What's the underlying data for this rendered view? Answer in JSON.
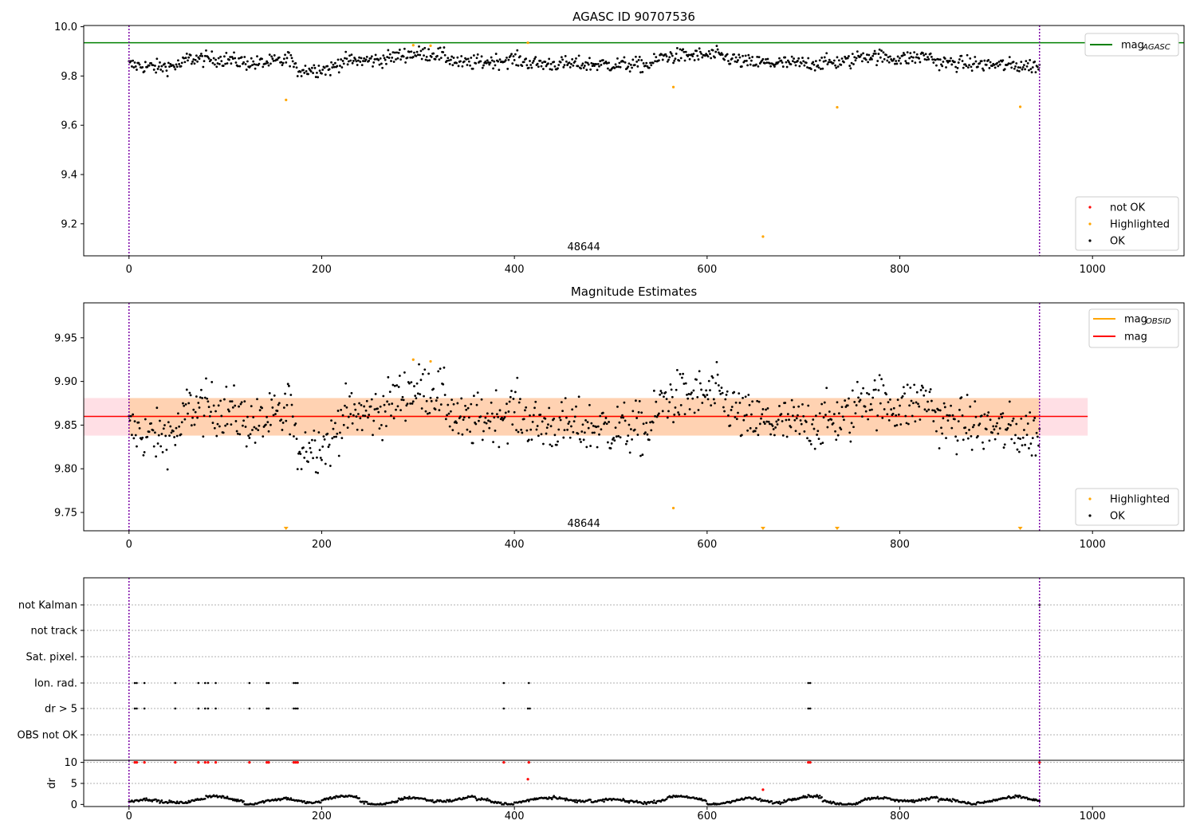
{
  "chart_data": [
    {
      "id": "top",
      "type": "scatter",
      "title": "AGASC ID 90707536",
      "xlim": [
        -47,
        1095
      ],
      "ylim": [
        9.07,
        10.005
      ],
      "xticks": [
        0,
        200,
        400,
        600,
        800,
        1000
      ],
      "yticks": [
        9.2,
        9.4,
        9.6,
        9.8,
        10.0
      ],
      "ytick_labels": [
        "9.2",
        "9.4",
        "9.6",
        "9.8",
        "10.0"
      ],
      "vlines": [
        0,
        945
      ],
      "hline": {
        "y": 9.935,
        "color": "#008000"
      },
      "obsid_label": {
        "text": "48644",
        "x": 472,
        "y": 9.105
      },
      "ok_series": {
        "x_start": 0,
        "x_end": 945,
        "y_mean": 9.86
      },
      "highlighted": [
        {
          "x": 163,
          "y": 9.703
        },
        {
          "x": 295,
          "y": 9.925
        },
        {
          "x": 313,
          "y": 9.923
        },
        {
          "x": 414,
          "y": 9.935
        },
        {
          "x": 565,
          "y": 9.755
        },
        {
          "x": 658,
          "y": 9.148
        },
        {
          "x": 735,
          "y": 9.673
        },
        {
          "x": 925,
          "y": 9.675
        }
      ],
      "legend_upper": [
        {
          "label": "mag",
          "sub": "AGASC",
          "color": "#008000"
        }
      ],
      "legend_lower": [
        {
          "label": "not OK",
          "color": "#ff0000"
        },
        {
          "label": "Highlighted",
          "color": "#ffa500"
        },
        {
          "label": "OK",
          "color": "#000000"
        }
      ]
    },
    {
      "id": "mid",
      "type": "scatter",
      "title": "Magnitude Estimates",
      "xlim": [
        -47,
        1095
      ],
      "ylim": [
        9.729,
        9.99
      ],
      "xticks": [
        0,
        200,
        400,
        600,
        800,
        1000
      ],
      "yticks": [
        9.75,
        9.8,
        9.85,
        9.9,
        9.95
      ],
      "ytick_labels": [
        "9.75",
        "9.80",
        "9.85",
        "9.90",
        "9.95"
      ],
      "vlines": [
        0,
        945
      ],
      "mag_line": {
        "y": 9.86,
        "color": "#ff0000"
      },
      "mag_band": {
        "y0": 9.838,
        "y1": 9.881,
        "x0": -47,
        "x1": 995
      },
      "obsid_band": {
        "y0": 9.838,
        "y1": 9.881,
        "x0": 0,
        "x1": 945
      },
      "obsid_label": {
        "text": "48644",
        "x": 472,
        "y": 9.737
      },
      "highlighted": [
        {
          "x": 295,
          "y": 9.925
        },
        {
          "x": 313,
          "y": 9.923
        },
        {
          "x": 565,
          "y": 9.755
        }
      ],
      "highlighted_below": [
        163,
        658,
        735,
        925
      ],
      "legend_upper": [
        {
          "label": "mag",
          "sub": "OBSID",
          "color": "#ffa500"
        },
        {
          "label": "mag",
          "sub": "",
          "color": "#ff0000"
        }
      ],
      "legend_lower": [
        {
          "label": "Highlighted",
          "color": "#ffa500"
        },
        {
          "label": "OK",
          "color": "#000000"
        }
      ]
    },
    {
      "id": "flags",
      "type": "scatter",
      "xlim": [
        -47,
        1095
      ],
      "vlines": [
        0,
        945
      ],
      "categories": [
        "not Kalman",
        "not track",
        "Sat. pixel.",
        "Ion. rad.",
        "dr > 5",
        "OBS not OK"
      ],
      "flag_points": {
        "Ion. rad.": [
          6,
          8,
          16,
          48,
          72,
          79,
          82,
          90,
          125,
          143,
          145,
          171,
          173,
          175,
          389,
          415,
          705,
          707
        ],
        "dr > 5": [
          6,
          8,
          16,
          48,
          72,
          79,
          82,
          90,
          125,
          143,
          145,
          171,
          173,
          175,
          389,
          414,
          416,
          705,
          707
        ],
        "not Kalman": [
          945
        ]
      }
    },
    {
      "id": "dr",
      "type": "scatter",
      "ylabel": "dr",
      "xlim": [
        -47,
        1095
      ],
      "ylim": [
        -0.5,
        10.5
      ],
      "xticks": [
        0,
        200,
        400,
        600,
        800,
        1000
      ],
      "yticks": [
        0,
        5,
        10
      ],
      "ytick_labels": [
        "0",
        "5",
        "10"
      ],
      "vlines": [
        0,
        945
      ],
      "red_points": [
        {
          "x": 6,
          "y": 10
        },
        {
          "x": 8,
          "y": 10
        },
        {
          "x": 16,
          "y": 10
        },
        {
          "x": 48,
          "y": 10
        },
        {
          "x": 72,
          "y": 10
        },
        {
          "x": 79,
          "y": 10
        },
        {
          "x": 82,
          "y": 10
        },
        {
          "x": 90,
          "y": 10
        },
        {
          "x": 125,
          "y": 10
        },
        {
          "x": 143,
          "y": 10
        },
        {
          "x": 145,
          "y": 10
        },
        {
          "x": 171,
          "y": 10
        },
        {
          "x": 173,
          "y": 10
        },
        {
          "x": 175,
          "y": 10
        },
        {
          "x": 389,
          "y": 10
        },
        {
          "x": 415,
          "y": 10
        },
        {
          "x": 414,
          "y": 6
        },
        {
          "x": 658,
          "y": 3.5
        },
        {
          "x": 705,
          "y": 10
        },
        {
          "x": 707,
          "y": 10
        },
        {
          "x": 945,
          "y": 10
        }
      ]
    }
  ]
}
